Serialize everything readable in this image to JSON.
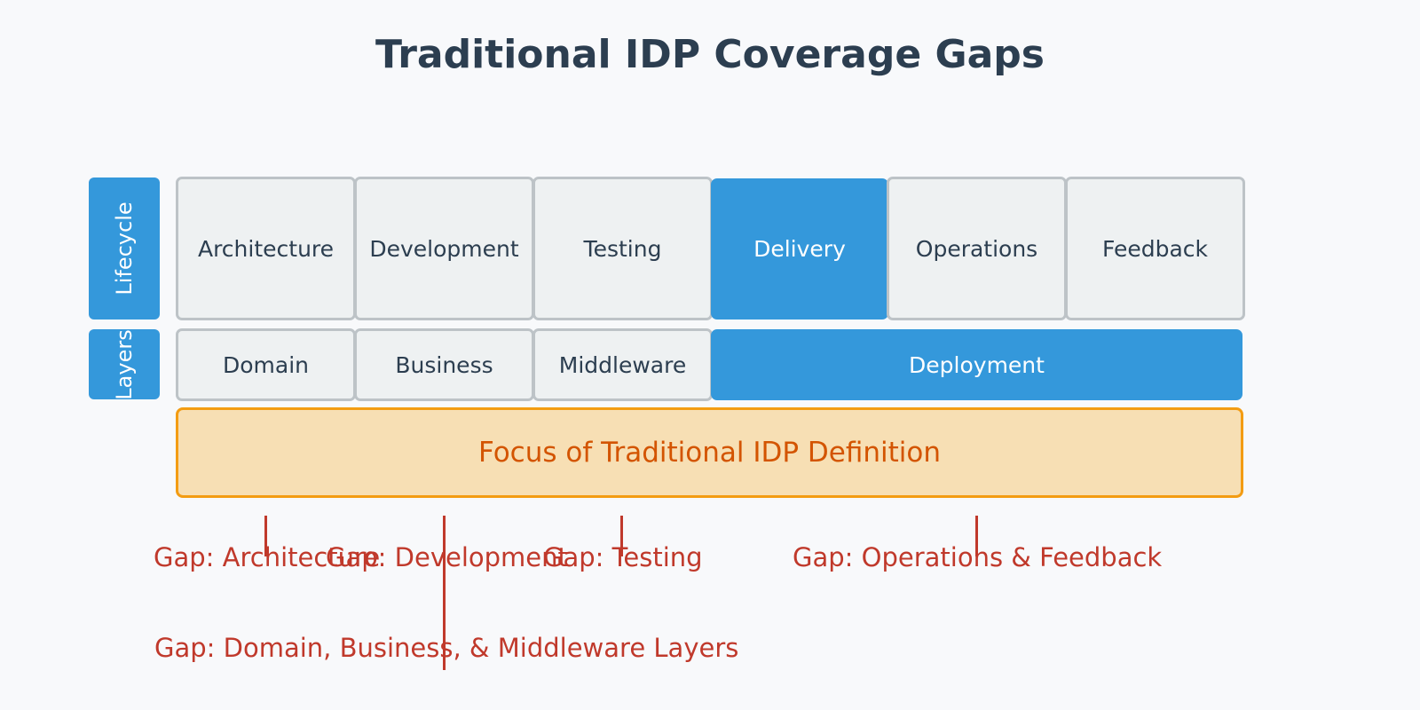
{
  "title": "Traditional IDP Coverage Gaps",
  "lifecycle": {
    "label": "Lifecycle",
    "stages": [
      "Architecture",
      "Development",
      "Testing",
      "Delivery",
      "Operations",
      "Feedback"
    ]
  },
  "layers": {
    "label": "Layers",
    "items": [
      "Domain",
      "Business",
      "Middleware",
      "Deployment"
    ]
  },
  "focus": {
    "label": "Focus of Traditional IDP Definition"
  },
  "gaps": {
    "architecture": "Gap: Architecture",
    "development": "Gap: Development",
    "testing": "Gap: Testing",
    "operations_feedback": "Gap: Operations & Feedback",
    "layers": "Gap: Domain, Business, & Middleware Layers"
  },
  "colors": {
    "highlight": "#3498db",
    "neutral_fill": "#eef1f2",
    "neutral_border": "#bdc3c7",
    "focus_fill": "#f7dfb4",
    "focus_border": "#f39c12",
    "focus_text": "#d35400",
    "gap": "#c0392b",
    "title": "#2c3e50"
  }
}
